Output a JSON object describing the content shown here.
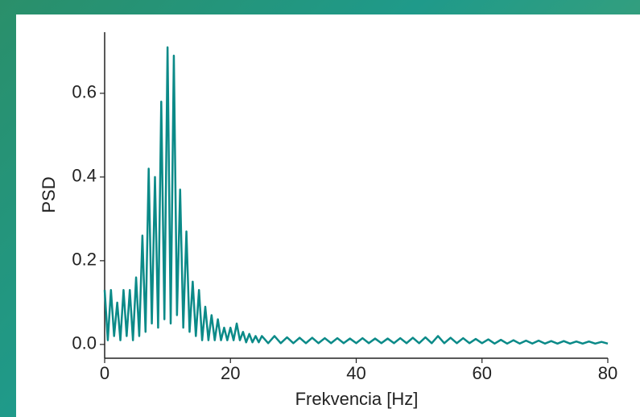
{
  "chart_data": {
    "type": "line",
    "xlabel": "Frekvencia [Hz]",
    "ylabel": "PSD",
    "color": "#0b8a88",
    "x": [
      0,
      0.5,
      1,
      1.5,
      2,
      2.5,
      3,
      3.5,
      4,
      4.5,
      5,
      5.5,
      6,
      6.5,
      7,
      7.5,
      8,
      8.5,
      9,
      9.5,
      10,
      10.5,
      11,
      11.5,
      12,
      12.5,
      13,
      13.5,
      14,
      14.5,
      15,
      15.5,
      16,
      16.5,
      17,
      17.5,
      18,
      18.5,
      19,
      19.5,
      20,
      20.5,
      21,
      21.5,
      22,
      22.5,
      23,
      23.5,
      24,
      24.5,
      25,
      26,
      27,
      28,
      29,
      30,
      31,
      32,
      33,
      34,
      35,
      36,
      37,
      38,
      39,
      40,
      41,
      42,
      43,
      44,
      45,
      46,
      47,
      48,
      49,
      50,
      51,
      52,
      53,
      54,
      55,
      56,
      57,
      58,
      59,
      60,
      61,
      62,
      63,
      64,
      65,
      66,
      67,
      68,
      69,
      70,
      71,
      72,
      73,
      74,
      75,
      76,
      77,
      78,
      79,
      80
    ],
    "values": [
      0.13,
      0.01,
      0.13,
      0.02,
      0.1,
      0.01,
      0.13,
      0.02,
      0.13,
      0.01,
      0.16,
      0.02,
      0.26,
      0.03,
      0.42,
      0.05,
      0.4,
      0.04,
      0.58,
      0.06,
      0.71,
      0.05,
      0.69,
      0.07,
      0.37,
      0.04,
      0.27,
      0.03,
      0.15,
      0.02,
      0.13,
      0.01,
      0.09,
      0.01,
      0.07,
      0.01,
      0.06,
      0.01,
      0.04,
      0.01,
      0.04,
      0.01,
      0.05,
      0.01,
      0.03,
      0.005,
      0.025,
      0.005,
      0.02,
      0.005,
      0.02,
      0.003,
      0.02,
      0.003,
      0.017,
      0.003,
      0.016,
      0.003,
      0.016,
      0.003,
      0.015,
      0.003,
      0.015,
      0.003,
      0.014,
      0.003,
      0.015,
      0.003,
      0.014,
      0.003,
      0.014,
      0.003,
      0.015,
      0.003,
      0.016,
      0.003,
      0.017,
      0.003,
      0.02,
      0.003,
      0.016,
      0.003,
      0.015,
      0.003,
      0.013,
      0.003,
      0.012,
      0.002,
      0.011,
      0.002,
      0.01,
      0.002,
      0.009,
      0.002,
      0.009,
      0.002,
      0.008,
      0.002,
      0.008,
      0.002,
      0.007,
      0.002,
      0.007,
      0.002,
      0.006,
      0.002
    ],
    "xlim": [
      0,
      80
    ],
    "xticks": [
      0,
      20,
      40,
      60,
      80
    ],
    "ylim": [
      -0.033,
      0.746
    ],
    "yticks": [
      {
        "value": 0,
        "label": "0.0"
      },
      0.2,
      0.4,
      0.6
    ]
  }
}
